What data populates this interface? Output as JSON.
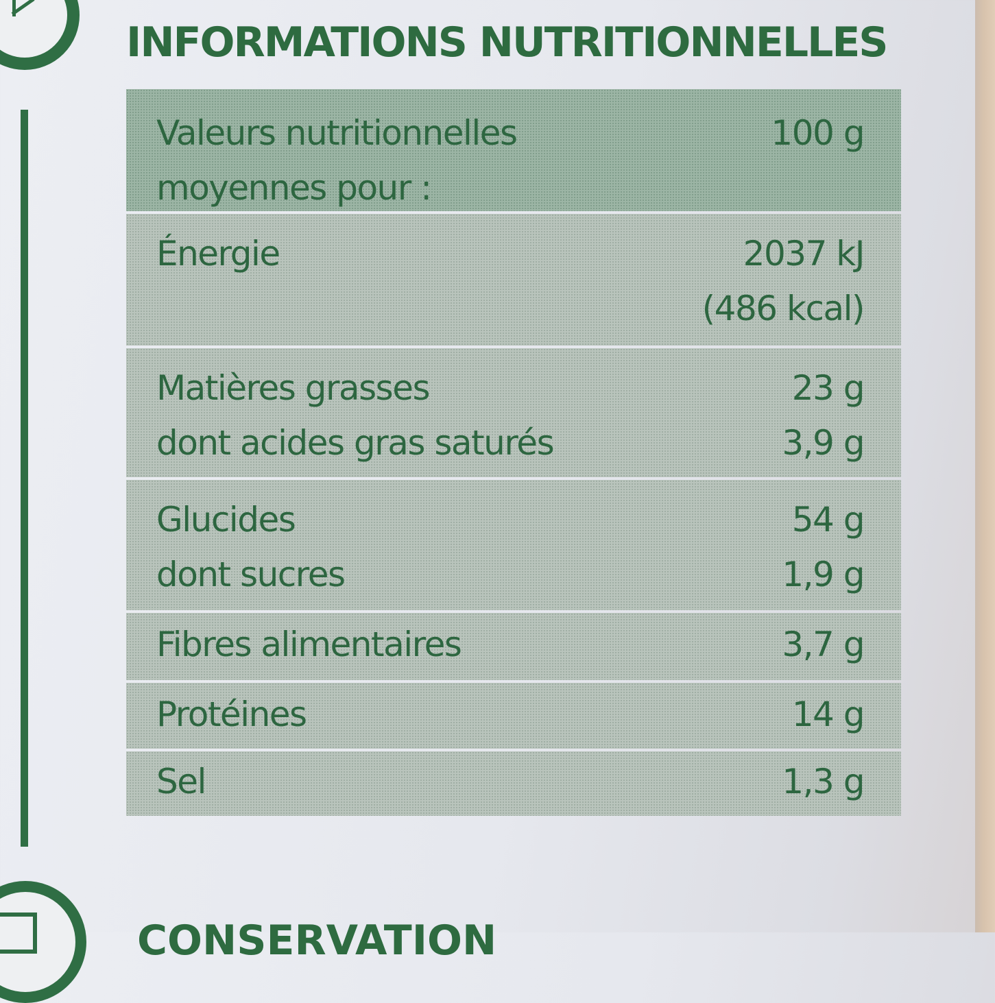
{
  "title": "INFORMATIONS NUTRITIONNELLES",
  "footer_title": "CONSERVATION",
  "colors": {
    "text_green": "#2e6b40",
    "header_row": "#9cb5a5",
    "row_bg": "#b9c4bc"
  },
  "table": {
    "header": {
      "label_line1": "Valeurs nutritionnelles",
      "label_line2": "moyennes pour :",
      "value": "100 g"
    },
    "rows": [
      {
        "label_line1": "Énergie",
        "label_line2": "",
        "value_line1": "2037 kJ",
        "value_line2": "(486 kcal)"
      },
      {
        "label_line1": "Matières grasses",
        "label_line2": "dont acides gras saturés",
        "value_line1": "23 g",
        "value_line2": "3,9 g"
      },
      {
        "label_line1": "Glucides",
        "label_line2": "dont sucres",
        "value_line1": "54 g",
        "value_line2": "1,9 g"
      },
      {
        "label_line1": "Fibres alimentaires",
        "label_line2": "",
        "value_line1": "3,7 g",
        "value_line2": ""
      },
      {
        "label_line1": "Protéines",
        "label_line2": "",
        "value_line1": "14 g",
        "value_line2": ""
      },
      {
        "label_line1": "Sel",
        "label_line2": "",
        "value_line1": "1,3 g",
        "value_line2": ""
      }
    ]
  }
}
